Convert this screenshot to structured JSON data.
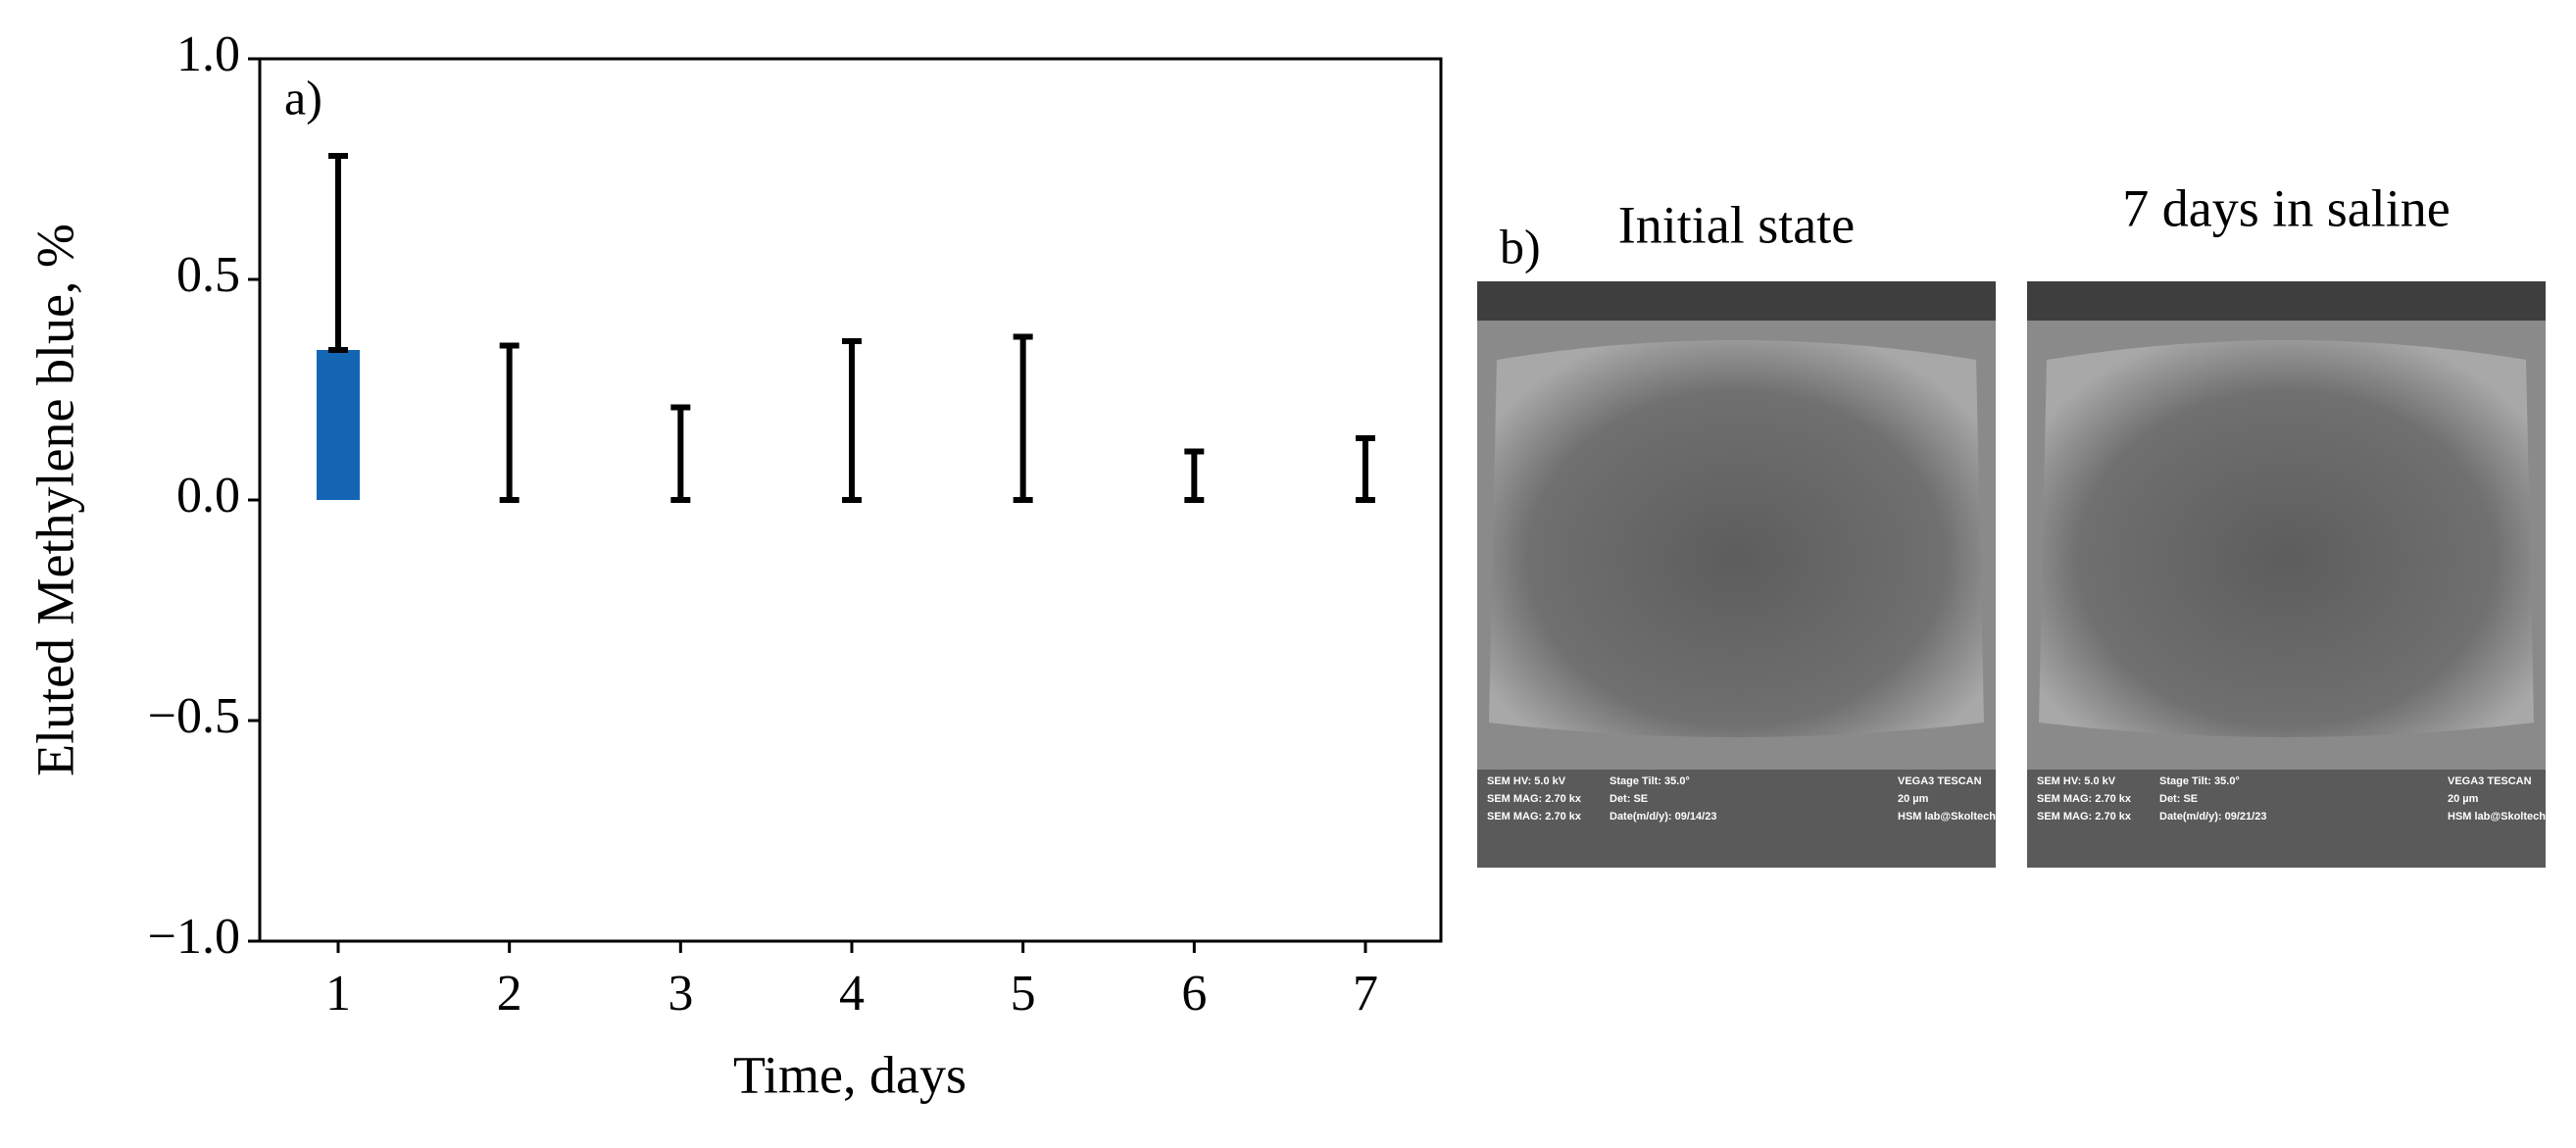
{
  "chart_data": {
    "type": "bar",
    "panel_label": "a)",
    "categories": [
      "1",
      "2",
      "3",
      "4",
      "5",
      "6",
      "7"
    ],
    "values": [
      0.34,
      0,
      0,
      0,
      0,
      0,
      0
    ],
    "errors": [
      0.44,
      0.35,
      0.21,
      0.36,
      0.37,
      0.11,
      0.14
    ],
    "color": "#1565b5",
    "error_color": "#000000",
    "xlabel": "Time, days",
    "ylabel": "Eluted Methylene blue, %",
    "ylim": [
      -1,
      1
    ],
    "yticks": [
      {
        "value": -1,
        "label": "−1.0"
      },
      {
        "value": -0.5,
        "label": "−0.5"
      },
      {
        "value": 0,
        "label": "0.0"
      },
      0.5,
      {
        "value": 1,
        "label": "1.0"
      }
    ],
    "grid": false
  },
  "images": {
    "panel_label": "b)",
    "items": [
      {
        "title": "Initial state",
        "info": [
          "SEM HV: 5.0 kV",
          "Stage Tilt: 35.0°",
          "VEGA3 TESCAN",
          "SEM MAG: 2.70 kx",
          "Det: SE",
          "20 µm",
          "SEM MAG: 2.70 kx",
          "Date(m/d/y): 09/14/23",
          "HSM lab@Skoltech"
        ]
      },
      {
        "title": "7 days in saline",
        "info": [
          "SEM HV: 5.0 kV",
          "Stage Tilt: 35.0°",
          "VEGA3 TESCAN",
          "SEM MAG: 2.70 kx",
          "Det: SE",
          "20 µm",
          "SEM MAG: 2.70 kx",
          "Date(m/d/y): 09/21/23",
          "HSM lab@Skoltech"
        ]
      }
    ]
  }
}
